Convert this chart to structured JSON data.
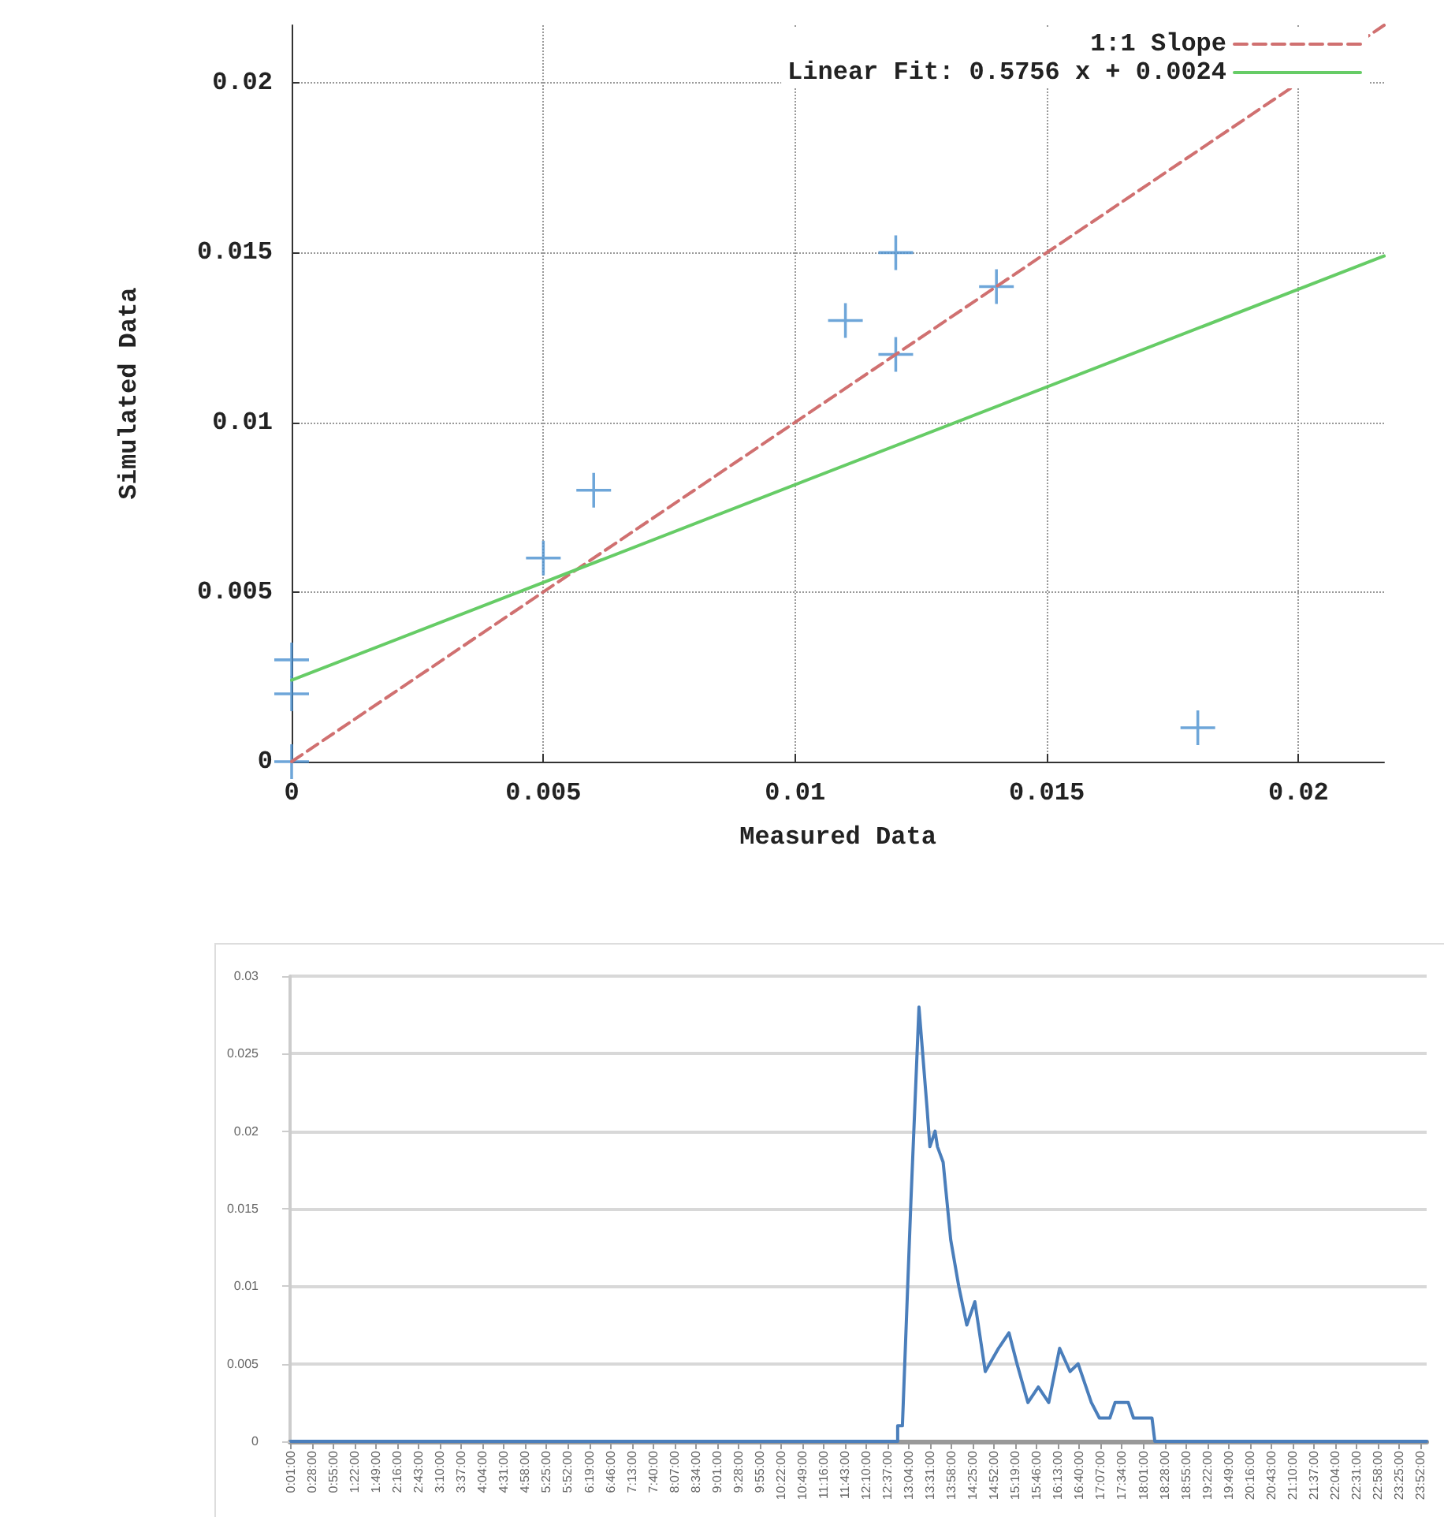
{
  "chart_data": [
    {
      "type": "scatter",
      "xlabel": "Measured Data",
      "ylabel": "Simulated Data",
      "xlim": [
        0,
        0.0217
      ],
      "ylim": [
        0,
        0.0217
      ],
      "xticks": [
        0,
        0.005,
        0.01,
        0.015,
        0.02
      ],
      "yticks": [
        0,
        0.005,
        0.01,
        0.015,
        0.02
      ],
      "grid": true,
      "legend": "top right",
      "series": [
        {
          "type": "scatter",
          "marker": "cross",
          "color": "#4a90d0",
          "x": [
            0,
            0,
            0,
            0.005,
            0.006,
            0.011,
            0.012,
            0.012,
            0.014,
            0.018
          ],
          "values": [
            0.003,
            0.002,
            0,
            0.006,
            0.008,
            0.013,
            0.015,
            0.012,
            0.014,
            0.001
          ]
        },
        {
          "type": "line",
          "name": "1:1 Slope",
          "color": "#d07070",
          "line_style": "dashed",
          "x": [
            0,
            0.0217
          ],
          "values": [
            0,
            0.0217
          ]
        },
        {
          "type": "line",
          "name": "Linear Fit: 0.5756 x + 0.0024",
          "color": "#66cc66",
          "line_style": "solid",
          "x": [
            0,
            0.0217
          ],
          "values": [
            0.0024,
            0.0149
          ]
        }
      ]
    },
    {
      "type": "line",
      "color": "#4a7ebb",
      "grid": "y",
      "legend": false,
      "xlim": [
        0,
        24
      ],
      "ylim": [
        0,
        0.03
      ],
      "yticks": [
        0,
        0.005,
        0.01,
        0.015,
        0.02,
        0.025,
        0.03
      ],
      "xticks": [
        {
          "value": 0.0167,
          "label": "0:01:00"
        },
        {
          "value": 0.4667,
          "label": "0:28:00"
        },
        {
          "value": 0.9167,
          "label": "0:55:00"
        },
        {
          "value": 1.3667,
          "label": "1:22:00"
        },
        {
          "value": 1.8167,
          "label": "1:49:00"
        },
        {
          "value": 2.2667,
          "label": "2:16:00"
        },
        {
          "value": 2.7167,
          "label": "2:43:00"
        },
        {
          "value": 3.1667,
          "label": "3:10:00"
        },
        {
          "value": 3.6167,
          "label": "3:37:00"
        },
        {
          "value": 4.0667,
          "label": "4:04:00"
        },
        {
          "value": 4.5167,
          "label": "4:31:00"
        },
        {
          "value": 4.9667,
          "label": "4:58:00"
        },
        {
          "value": 5.4167,
          "label": "5:25:00"
        },
        {
          "value": 5.8667,
          "label": "5:52:00"
        },
        {
          "value": 6.3167,
          "label": "6:19:00"
        },
        {
          "value": 6.7667,
          "label": "6:46:00"
        },
        {
          "value": 7.2167,
          "label": "7:13:00"
        },
        {
          "value": 7.6667,
          "label": "7:40:00"
        },
        {
          "value": 8.1167,
          "label": "8:07:00"
        },
        {
          "value": 8.5667,
          "label": "8:34:00"
        },
        {
          "value": 9.0167,
          "label": "9:01:00"
        },
        {
          "value": 9.4667,
          "label": "9:28:00"
        },
        {
          "value": 9.9167,
          "label": "9:55:00"
        },
        {
          "value": 10.3667,
          "label": "10:22:00"
        },
        {
          "value": 10.8167,
          "label": "10:49:00"
        },
        {
          "value": 11.2667,
          "label": "11:16:00"
        },
        {
          "value": 11.7167,
          "label": "11:43:00"
        },
        {
          "value": 12.1667,
          "label": "12:10:00"
        },
        {
          "value": 12.6167,
          "label": "12:37:00"
        },
        {
          "value": 13.0667,
          "label": "13:04:00"
        },
        {
          "value": 13.5167,
          "label": "13:31:00"
        },
        {
          "value": 13.9667,
          "label": "13:58:00"
        },
        {
          "value": 14.4167,
          "label": "14:25:00"
        },
        {
          "value": 14.8667,
          "label": "14:52:00"
        },
        {
          "value": 15.3167,
          "label": "15:19:00"
        },
        {
          "value": 15.7667,
          "label": "15:46:00"
        },
        {
          "value": 16.2167,
          "label": "16:13:00"
        },
        {
          "value": 16.6667,
          "label": "16:40:00"
        },
        {
          "value": 17.1167,
          "label": "17:07:00"
        },
        {
          "value": 17.5667,
          "label": "17:34:00"
        },
        {
          "value": 18.0167,
          "label": "18:01:00"
        },
        {
          "value": 18.4667,
          "label": "18:28:00"
        },
        {
          "value": 18.9167,
          "label": "18:55:00"
        },
        {
          "value": 19.3667,
          "label": "19:22:00"
        },
        {
          "value": 19.8167,
          "label": "19:49:00"
        },
        {
          "value": 20.2667,
          "label": "20:16:00"
        },
        {
          "value": 20.7167,
          "label": "20:43:00"
        },
        {
          "value": 21.1667,
          "label": "21:10:00"
        },
        {
          "value": 21.6167,
          "label": "21:37:00"
        },
        {
          "value": 22.0667,
          "label": "22:04:00"
        },
        {
          "value": 22.5167,
          "label": "22:31:00"
        },
        {
          "value": 22.9667,
          "label": "22:58:00"
        },
        {
          "value": 23.4167,
          "label": "23:25:00"
        },
        {
          "value": 23.8667,
          "label": "23:52:00"
        }
      ],
      "x": [
        0.0167,
        12.83,
        12.83,
        12.93,
        13.11,
        13.28,
        13.45,
        13.51,
        13.62,
        13.67,
        13.79,
        13.95,
        14.12,
        14.29,
        14.46,
        14.68,
        14.96,
        15.18,
        15.35,
        15.58,
        15.8,
        16.02,
        16.25,
        16.47,
        16.64,
        16.92,
        17.09,
        17.31,
        17.42,
        17.7,
        17.81,
        18.2,
        18.26,
        24
      ],
      "values": [
        0,
        0,
        0.001,
        0.001,
        0.0155,
        0.028,
        0.0215,
        0.019,
        0.02,
        0.019,
        0.018,
        0.013,
        0.01,
        0.0075,
        0.009,
        0.0045,
        0.006,
        0.007,
        0.005,
        0.0025,
        0.0035,
        0.0025,
        0.006,
        0.0045,
        0.005,
        0.0025,
        0.0015,
        0.0015,
        0.0025,
        0.0025,
        0.0015,
        0.0015,
        0,
        0
      ]
    }
  ]
}
